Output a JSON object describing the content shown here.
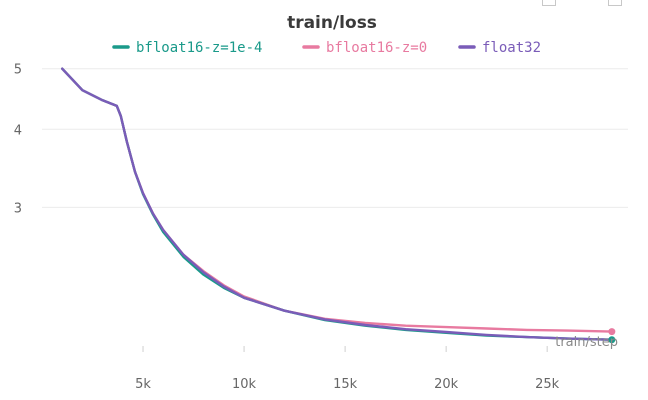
{
  "chart_data": {
    "type": "line",
    "title": "train/loss",
    "xlabel": "train/step",
    "ylabel": "",
    "xlim": [
      0,
      29000
    ],
    "ylim": [
      1.8,
      5.05
    ],
    "y_scale": "log",
    "x_ticks": [
      5000,
      10000,
      15000,
      20000,
      25000
    ],
    "x_tick_labels": [
      "5k",
      "10k",
      "15k",
      "20k",
      "25k"
    ],
    "y_ticks": [
      3,
      4,
      5
    ],
    "y_tick_labels": [
      "3",
      "4",
      "5"
    ],
    "grid": true,
    "legend_position": "top-center",
    "series": [
      {
        "name": "bfloat16-z=1e-4",
        "color": "#1a9a8a",
        "x": [
          1000,
          2000,
          3000,
          3700,
          3900,
          4200,
          4600,
          5000,
          5500,
          6000,
          7000,
          8000,
          9000,
          10000,
          12000,
          14000,
          16000,
          18000,
          20000,
          22000,
          24000,
          26000,
          28200
        ],
        "y": [
          5.0,
          4.62,
          4.45,
          4.36,
          4.2,
          3.82,
          3.42,
          3.15,
          2.92,
          2.74,
          2.5,
          2.34,
          2.23,
          2.15,
          2.05,
          1.98,
          1.94,
          1.91,
          1.89,
          1.87,
          1.86,
          1.85,
          1.842
        ]
      },
      {
        "name": "bfloat16-z=0",
        "color": "#e87aa0",
        "x": [
          1000,
          2000,
          3000,
          3700,
          3900,
          4200,
          4600,
          5000,
          5500,
          6000,
          7000,
          8000,
          9000,
          10000,
          12000,
          14000,
          16000,
          18000,
          20000,
          22000,
          24000,
          26000,
          28200
        ],
        "y": [
          5.0,
          4.62,
          4.45,
          4.36,
          4.2,
          3.82,
          3.42,
          3.16,
          2.93,
          2.76,
          2.52,
          2.37,
          2.25,
          2.16,
          2.05,
          1.99,
          1.96,
          1.94,
          1.93,
          1.92,
          1.91,
          1.905,
          1.898
        ]
      },
      {
        "name": "float32",
        "color": "#7a5cb8",
        "x": [
          1000,
          2000,
          3000,
          3700,
          3900,
          4200,
          4600,
          5000,
          5500,
          6000,
          7000,
          8000,
          9000,
          10000,
          12000,
          14000,
          16000,
          18000,
          20000,
          22000,
          24000,
          26000,
          28200
        ],
        "y": [
          5.0,
          4.62,
          4.45,
          4.36,
          4.2,
          3.82,
          3.42,
          3.16,
          2.93,
          2.76,
          2.52,
          2.36,
          2.24,
          2.15,
          2.05,
          1.985,
          1.945,
          1.915,
          1.895,
          1.875,
          1.86,
          1.85,
          1.842
        ]
      }
    ]
  }
}
